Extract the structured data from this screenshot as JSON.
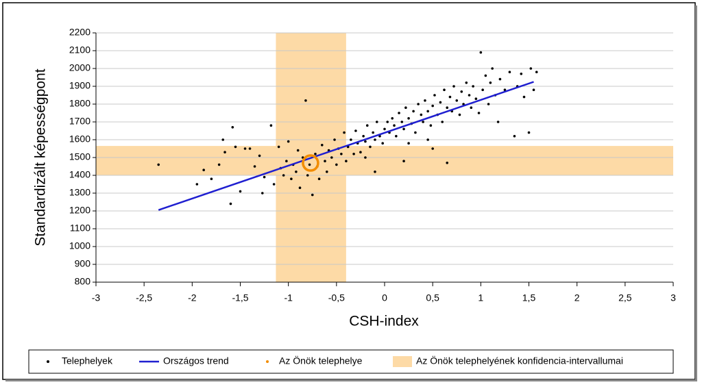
{
  "chart_data": {
    "type": "scatter",
    "xlabel": "CSH-index",
    "ylabel": "Standardizált képességpont",
    "xlim": [
      -3,
      3
    ],
    "ylim": [
      800,
      2200
    ],
    "xticks": [
      -3,
      {
        "value": -2.5,
        "label": "-2,5"
      },
      -2,
      {
        "value": -1.5,
        "label": "-1,5"
      },
      -1,
      {
        "value": -0.5,
        "label": "-0,5"
      },
      0,
      {
        "value": 0.5,
        "label": "0,5"
      },
      1,
      {
        "value": 1.5,
        "label": "1,5"
      },
      2,
      {
        "value": 2.5,
        "label": "2,5"
      },
      3
    ],
    "yticks": [
      800,
      900,
      1000,
      1100,
      1200,
      1300,
      1400,
      1500,
      1600,
      1700,
      1800,
      1900,
      2000,
      2100,
      2200
    ],
    "grid": true,
    "band": {
      "name": "Az Önök telephelyének konfidencia-intervallumai",
      "color": "#fddaa6",
      "x": [
        -1.13,
        -0.4
      ],
      "y": [
        1400,
        1565
      ]
    },
    "series": [
      {
        "name": "Telephelyek",
        "type": "scatter",
        "color": "#000000",
        "x": [
          -2.35,
          -1.95,
          -1.88,
          -1.8,
          -1.72,
          -1.68,
          -1.66,
          -1.6,
          -1.58,
          -1.55,
          -1.5,
          -1.45,
          -1.4,
          -1.35,
          -1.3,
          -1.27,
          -1.25,
          -1.18,
          -1.15,
          -1.1,
          -1.08,
          -1.05,
          -1.02,
          -1.0,
          -0.97,
          -0.95,
          -0.92,
          -0.9,
          -0.88,
          -0.85,
          -0.82,
          -0.8,
          -0.78,
          -0.75,
          -0.72,
          -0.7,
          -0.68,
          -0.65,
          -0.62,
          -0.6,
          -0.58,
          -0.55,
          -0.52,
          -0.5,
          -0.48,
          -0.45,
          -0.42,
          -0.4,
          -0.38,
          -0.35,
          -0.32,
          -0.3,
          -0.28,
          -0.25,
          -0.22,
          -0.2,
          -0.18,
          -0.15,
          -0.12,
          -0.1,
          -0.08,
          -0.05,
          -0.02,
          0,
          0.03,
          0.05,
          0.08,
          0.1,
          0.12,
          0.15,
          0.18,
          0.2,
          0.22,
          0.25,
          0.28,
          0.3,
          0.32,
          0.35,
          0.38,
          0.4,
          0.42,
          0.45,
          0.48,
          0.5,
          0.52,
          0.55,
          0.58,
          0.6,
          0.62,
          0.65,
          0.68,
          0.7,
          0.72,
          0.75,
          0.78,
          0.8,
          0.82,
          0.85,
          0.88,
          0.9,
          0.92,
          0.95,
          0.98,
          1.0,
          1.02,
          1.05,
          1.08,
          1.1,
          1.12,
          1.15,
          1.18,
          1.2,
          1.25,
          1.3,
          1.35,
          1.38,
          1.42,
          1.45,
          1.5,
          1.52,
          1.55,
          1.58,
          -0.1,
          0.2,
          0.5,
          0.65,
          -0.2,
          0.45,
          0.25
        ],
        "values": [
          1460,
          1350,
          1430,
          1380,
          1460,
          1600,
          1530,
          1240,
          1670,
          1560,
          1310,
          1550,
          1550,
          1450,
          1510,
          1300,
          1390,
          1680,
          1350,
          1560,
          1440,
          1400,
          1480,
          1590,
          1380,
          1460,
          1420,
          1540,
          1330,
          1500,
          1820,
          1400,
          1460,
          1290,
          1520,
          1450,
          1380,
          1570,
          1480,
          1420,
          1540,
          1500,
          1600,
          1460,
          1550,
          1520,
          1640,
          1480,
          1560,
          1600,
          1520,
          1650,
          1580,
          1530,
          1620,
          1590,
          1680,
          1560,
          1640,
          1600,
          1700,
          1620,
          1580,
          1660,
          1700,
          1640,
          1720,
          1680,
          1620,
          1750,
          1700,
          1660,
          1780,
          1720,
          1690,
          1760,
          1640,
          1800,
          1740,
          1700,
          1820,
          1760,
          1680,
          1790,
          1850,
          1740,
          1810,
          1700,
          1880,
          1780,
          1840,
          1760,
          1900,
          1820,
          1740,
          1870,
          1800,
          1920,
          1850,
          1780,
          1900,
          1830,
          1750,
          2090,
          1880,
          1960,
          1800,
          1920,
          2000,
          1850,
          1700,
          1940,
          1880,
          1980,
          1620,
          1900,
          1970,
          1840,
          1640,
          2000,
          1880,
          1980,
          1420,
          1480,
          1550,
          1470,
          1500,
          1600,
          1580
        ]
      },
      {
        "name": "Országos trend",
        "type": "line",
        "color": "#1f1fd0",
        "x": [
          -2.35,
          1.55
        ],
        "values": [
          1205,
          1925
        ]
      },
      {
        "name": "Az Önök telephelye",
        "type": "ring",
        "color": "#f28c00",
        "x": [
          -0.77
        ],
        "values": [
          1469
        ]
      }
    ]
  }
}
